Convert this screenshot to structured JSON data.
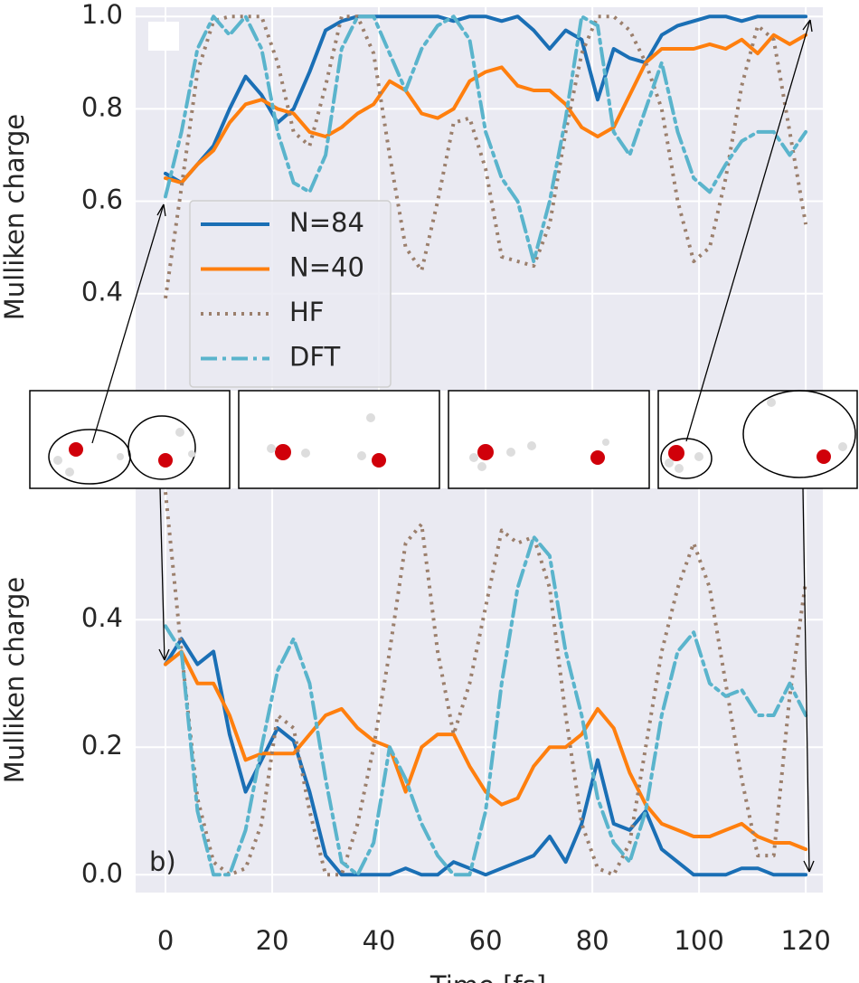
{
  "chart_data": [
    {
      "type": "line",
      "ylabel": "Mulliken charge",
      "x": [
        0,
        3,
        6,
        9,
        12,
        15,
        18,
        21,
        24,
        27,
        30,
        33,
        36,
        39,
        42,
        45,
        48,
        51,
        54,
        57,
        60,
        63,
        66,
        69,
        72,
        75,
        78,
        81,
        84,
        87,
        90,
        93,
        96,
        99,
        102,
        105,
        108,
        111,
        114,
        117,
        120
      ],
      "ylim": [
        0.19,
        1.02
      ],
      "yticks": [
        0.4,
        0.6,
        0.8,
        {
          "value": 1,
          "label": "1.0"
        }
      ],
      "grid": true,
      "legend": "center left",
      "series": [
        {
          "name": "N=84",
          "color": "#1a6fb5",
          "linestyle": "solid",
          "values": [
            0.66,
            0.64,
            0.68,
            0.72,
            0.8,
            0.87,
            0.83,
            0.77,
            0.8,
            0.88,
            0.97,
            0.99,
            1.0,
            1.0,
            1.0,
            1.0,
            1.0,
            1.0,
            0.99,
            1.0,
            1.0,
            0.99,
            1.0,
            0.97,
            0.93,
            0.97,
            0.95,
            0.82,
            0.93,
            0.91,
            0.9,
            0.96,
            0.98,
            0.99,
            1.0,
            1.0,
            0.99,
            1.0,
            1.0,
            1.0,
            1.0
          ]
        },
        {
          "name": "N=40",
          "color": "#ff7f0e",
          "linestyle": "solid",
          "values": [
            0.65,
            0.64,
            0.68,
            0.71,
            0.77,
            0.81,
            0.82,
            0.8,
            0.79,
            0.75,
            0.74,
            0.76,
            0.79,
            0.81,
            0.86,
            0.84,
            0.79,
            0.78,
            0.8,
            0.86,
            0.88,
            0.89,
            0.85,
            0.84,
            0.84,
            0.81,
            0.76,
            0.74,
            0.76,
            0.83,
            0.9,
            0.93,
            0.93,
            0.93,
            0.94,
            0.93,
            0.95,
            0.92,
            0.96,
            0.94,
            0.96
          ]
        },
        {
          "name": "HF",
          "color": "#9b7f6c",
          "linestyle": "dotted",
          "values": [
            0.39,
            0.63,
            0.88,
            0.99,
            1.0,
            1.0,
            1.0,
            0.9,
            0.75,
            0.72,
            0.85,
            1.0,
            1.0,
            0.92,
            0.7,
            0.5,
            0.45,
            0.6,
            0.77,
            0.78,
            0.67,
            0.48,
            0.47,
            0.46,
            0.55,
            0.75,
            0.92,
            1.0,
            1.0,
            0.97,
            0.9,
            0.8,
            0.6,
            0.47,
            0.5,
            0.65,
            0.85,
            0.98,
            0.95,
            0.75,
            0.55
          ]
        },
        {
          "name": "DFT",
          "color": "#5ab4cc",
          "linestyle": "dashdot",
          "values": [
            0.61,
            0.75,
            0.93,
            1.0,
            0.96,
            1.0,
            0.93,
            0.75,
            0.64,
            0.62,
            0.7,
            0.93,
            1.0,
            1.0,
            0.92,
            0.84,
            0.93,
            0.98,
            1.0,
            0.95,
            0.75,
            0.65,
            0.6,
            0.47,
            0.6,
            0.78,
            1.0,
            0.98,
            0.75,
            0.7,
            0.8,
            0.9,
            0.75,
            0.65,
            0.62,
            0.68,
            0.73,
            0.75,
            0.75,
            0.7,
            0.75
          ]
        }
      ]
    },
    {
      "type": "line",
      "ylabel": "Mulliken charge",
      "xlabel": "Time [fs]",
      "panel_label": "b)",
      "x": [
        0,
        3,
        6,
        9,
        12,
        15,
        18,
        21,
        24,
        27,
        30,
        33,
        36,
        39,
        42,
        45,
        48,
        51,
        54,
        57,
        60,
        63,
        66,
        69,
        72,
        75,
        78,
        81,
        84,
        87,
        90,
        93,
        96,
        99,
        102,
        105,
        108,
        111,
        114,
        117,
        120
      ],
      "xlim": [
        -5.6,
        123.2
      ],
      "xticks": [
        0,
        20,
        40,
        60,
        80,
        100,
        120
      ],
      "ylim": [
        -0.028,
        0.606
      ],
      "yticks": [
        {
          "value": 0,
          "label": "0.0"
        },
        0.2,
        0.4
      ],
      "grid": true,
      "series": [
        {
          "color": "#1a6fb5",
          "linestyle": "solid",
          "values": [
            0.33,
            0.37,
            0.33,
            0.35,
            0.22,
            0.13,
            0.18,
            0.23,
            0.21,
            0.13,
            0.03,
            0.0,
            0.0,
            0.0,
            0.0,
            0.01,
            0.0,
            0.0,
            0.02,
            0.01,
            0.0,
            0.01,
            0.02,
            0.03,
            0.06,
            0.02,
            0.08,
            0.18,
            0.08,
            0.07,
            0.1,
            0.04,
            0.02,
            0.0,
            0.0,
            0.0,
            0.01,
            0.01,
            0.0,
            0.0,
            0.0
          ]
        },
        {
          "color": "#ff7f0e",
          "linestyle": "solid",
          "values": [
            0.33,
            0.35,
            0.3,
            0.3,
            0.25,
            0.18,
            0.19,
            0.19,
            0.19,
            0.22,
            0.25,
            0.26,
            0.23,
            0.21,
            0.2,
            0.13,
            0.2,
            0.22,
            0.22,
            0.17,
            0.13,
            0.11,
            0.12,
            0.17,
            0.2,
            0.2,
            0.22,
            0.26,
            0.23,
            0.16,
            0.11,
            0.08,
            0.07,
            0.06,
            0.06,
            0.07,
            0.08,
            0.06,
            0.05,
            0.05,
            0.04
          ]
        },
        {
          "color": "#9b7f6c",
          "linestyle": "dotted",
          "values": [
            0.6,
            0.35,
            0.12,
            0.02,
            0.0,
            0.01,
            0.08,
            0.25,
            0.23,
            0.1,
            0.0,
            0.0,
            0.08,
            0.2,
            0.35,
            0.52,
            0.55,
            0.35,
            0.22,
            0.3,
            0.42,
            0.54,
            0.52,
            0.53,
            0.45,
            0.25,
            0.08,
            0.01,
            0.0,
            0.05,
            0.2,
            0.35,
            0.45,
            0.52,
            0.45,
            0.3,
            0.15,
            0.03,
            0.03,
            0.28,
            0.46
          ]
        },
        {
          "color": "#5ab4cc",
          "linestyle": "dashdot",
          "values": [
            0.39,
            0.35,
            0.1,
            0.0,
            0.0,
            0.07,
            0.2,
            0.32,
            0.37,
            0.3,
            0.15,
            0.02,
            0.0,
            0.05,
            0.2,
            0.15,
            0.08,
            0.03,
            0.0,
            0.0,
            0.1,
            0.3,
            0.45,
            0.53,
            0.5,
            0.35,
            0.25,
            0.12,
            0.05,
            0.02,
            0.1,
            0.25,
            0.35,
            0.38,
            0.3,
            0.28,
            0.29,
            0.25,
            0.25,
            0.3,
            0.25
          ]
        }
      ]
    }
  ]
}
